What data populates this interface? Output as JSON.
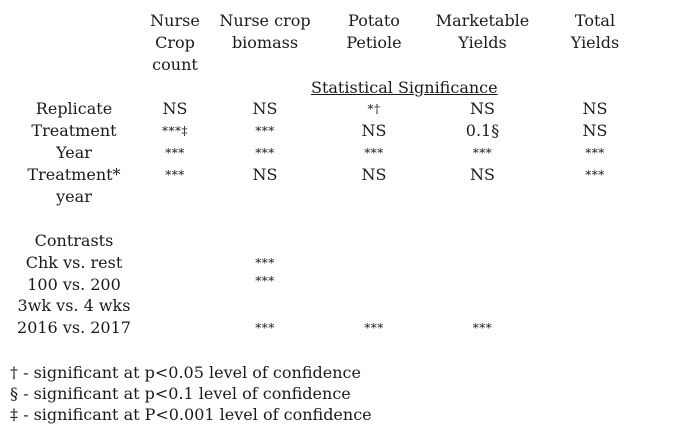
{
  "headers": [
    {
      "line1": "Nurse",
      "line2": "Crop",
      "line3": "count"
    },
    {
      "line1": "Nurse crop",
      "line2": "biomass",
      "line3": ""
    },
    {
      "line1": "Potato",
      "line2": "Petiole",
      "line3": ""
    },
    {
      "line1": "Marketable",
      "line2": "Yields",
      "line3": ""
    },
    {
      "line1": "Total",
      "line2": "Yields",
      "line3": ""
    }
  ],
  "section_title": "Statistical Significance",
  "rows": [
    {
      "label": "Replicate",
      "cells": [
        "NS",
        "NS",
        "*†",
        "NS",
        "NS"
      ]
    },
    {
      "label": "Treatment",
      "cells": [
        "***‡",
        "***",
        "NS",
        "0.1§",
        "NS"
      ]
    },
    {
      "label": "Year",
      "cells": [
        "***",
        "***",
        "***",
        "***",
        "***"
      ]
    },
    {
      "label": "Treatment*",
      "label2": "year",
      "cells": [
        "***",
        "NS",
        "NS",
        "NS",
        "***"
      ]
    }
  ],
  "contrasts_title": "Contrasts",
  "contrasts": [
    {
      "label": "Chk vs. rest",
      "cells": [
        "",
        "***",
        "",
        "",
        ""
      ]
    },
    {
      "label": "100 vs. 200",
      "cells": [
        "",
        "***",
        "",
        "",
        ""
      ]
    },
    {
      "label": "3wk vs. 4 wks",
      "cells": [
        "",
        "",
        "",
        "",
        ""
      ]
    },
    {
      "label": "2016 vs. 2017",
      "cells": [
        "",
        "***",
        "***",
        "***",
        ""
      ]
    }
  ],
  "footnotes": [
    "† -  significant at p<0.05 level of confidence",
    "§ - significant at p<0.1 level of confidence",
    "‡ - significant at P<0.001 level of confidence"
  ]
}
